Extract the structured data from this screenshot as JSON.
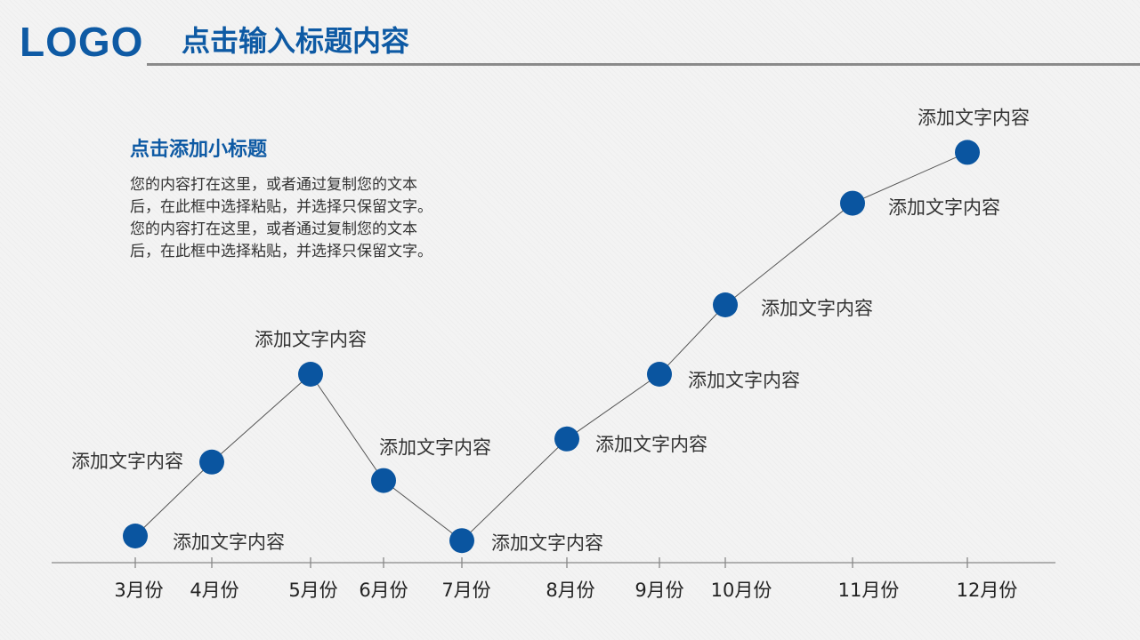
{
  "header": {
    "logo_text": "LOGO",
    "title": "点击输入标题内容"
  },
  "text_block": {
    "subtitle": "点击添加小标题",
    "lines": [
      "您的内容打在这里，或者通过复制您的文本",
      "后，在此框中选择粘贴，并选择只保留文字。",
      "您的内容打在这里，或者通过复制您的文本",
      "后，在此框中选择粘贴，并选择只保留文字。"
    ]
  },
  "colors": {
    "brand": "#0e5aa4",
    "marker": "#0a55a0",
    "line": "#555555",
    "axis": "#888888",
    "label": "#333333"
  },
  "chart_data": {
    "type": "line",
    "categories": [
      "3月份",
      "4月份",
      "5月份",
      "6月份",
      "7月份",
      "8月份",
      "9月份",
      "10月份",
      "11月份",
      "12月份"
    ],
    "values": [
      1,
      2.6,
      4.5,
      2.2,
      0.9,
      3.1,
      4.5,
      6.0,
      8.2,
      9.3
    ],
    "point_labels": [
      "添加文字内容",
      "添加文字内容",
      "添加文字内容",
      "添加文字内容",
      "添加文字内容",
      "添加文字内容",
      "添加文字内容",
      "添加文字内容",
      "添加文字内容",
      "添加文字内容"
    ],
    "xlabel": "",
    "ylabel": "",
    "grid": false
  }
}
